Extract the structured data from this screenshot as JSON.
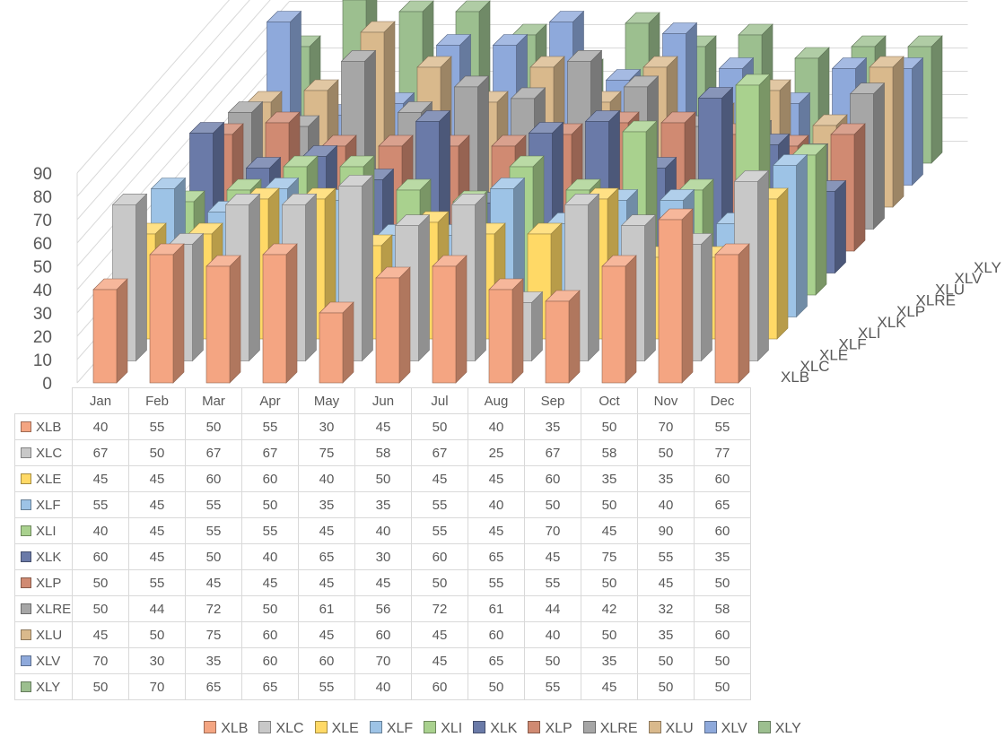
{
  "chart_data": {
    "type": "bar",
    "subtype": "3d-column",
    "title": "",
    "xlabel": "",
    "ylabel": "",
    "ylim": [
      0,
      90
    ],
    "y_ticks": [
      "0",
      "10",
      "20",
      "30",
      "40",
      "50",
      "60",
      "70",
      "80",
      "90"
    ],
    "grid": true,
    "legend_position": "bottom",
    "data_table": true,
    "categories": [
      "Jan",
      "Feb",
      "Mar",
      "Apr",
      "May",
      "Jun",
      "Jul",
      "Aug",
      "Sep",
      "Oct",
      "Nov",
      "Dec"
    ],
    "series": [
      {
        "name": "XLB",
        "color": "#f4a582",
        "values": [
          40,
          55,
          50,
          55,
          30,
          45,
          50,
          40,
          35,
          50,
          70,
          55
        ]
      },
      {
        "name": "XLC",
        "color": "#c8c8c8",
        "values": [
          67,
          50,
          67,
          67,
          75,
          58,
          67,
          25,
          67,
          58,
          50,
          77
        ]
      },
      {
        "name": "XLE",
        "color": "#ffd966",
        "values": [
          45,
          45,
          60,
          60,
          40,
          50,
          45,
          45,
          60,
          35,
          35,
          60
        ]
      },
      {
        "name": "XLF",
        "color": "#9dc3e6",
        "values": [
          55,
          45,
          55,
          50,
          35,
          35,
          55,
          40,
          50,
          50,
          40,
          65
        ]
      },
      {
        "name": "XLI",
        "color": "#a9d18e",
        "values": [
          40,
          45,
          55,
          55,
          45,
          40,
          55,
          45,
          70,
          45,
          90,
          60
        ]
      },
      {
        "name": "XLK",
        "color": "#6a7aa8",
        "values": [
          60,
          45,
          50,
          40,
          65,
          30,
          60,
          65,
          45,
          75,
          55,
          35
        ]
      },
      {
        "name": "XLP",
        "color": "#d08a72",
        "values": [
          50,
          55,
          45,
          45,
          45,
          45,
          50,
          55,
          55,
          50,
          45,
          50
        ]
      },
      {
        "name": "XLRE",
        "color": "#a6a6a6",
        "values": [
          50,
          44,
          72,
          50,
          61,
          56,
          72,
          61,
          44,
          42,
          32,
          58
        ]
      },
      {
        "name": "XLU",
        "color": "#d9b98c",
        "values": [
          45,
          50,
          75,
          60,
          45,
          60,
          45,
          60,
          40,
          50,
          35,
          60
        ]
      },
      {
        "name": "XLV",
        "color": "#8ea9db",
        "values": [
          70,
          30,
          35,
          60,
          60,
          70,
          45,
          65,
          50,
          35,
          50,
          50
        ]
      },
      {
        "name": "XLY",
        "color": "#9cbf8f",
        "values": [
          50,
          70,
          65,
          65,
          55,
          40,
          60,
          50,
          55,
          45,
          50,
          50
        ]
      }
    ]
  }
}
